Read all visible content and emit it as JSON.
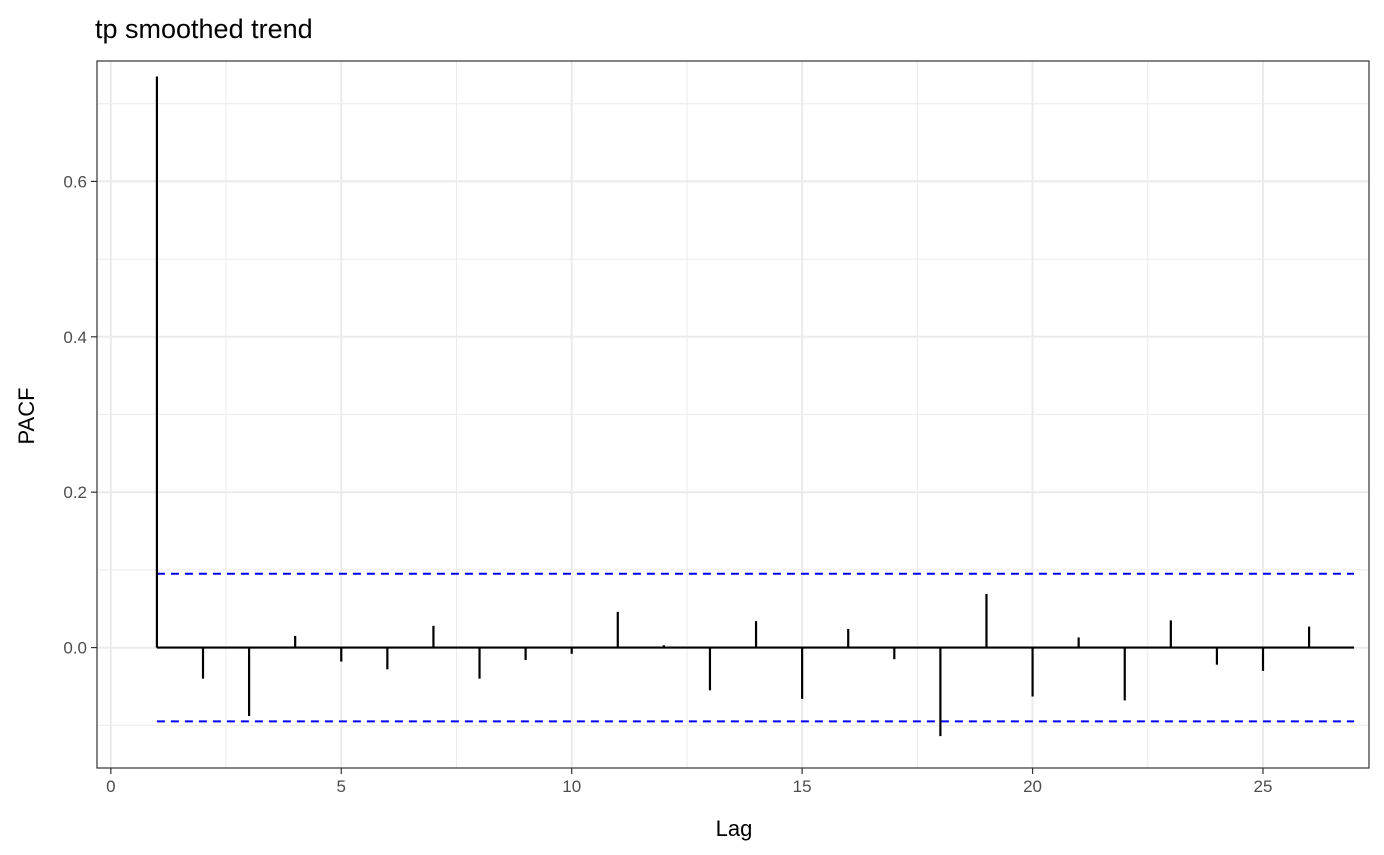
{
  "chart_data": {
    "type": "bar",
    "title": "tp smoothed trend",
    "xlabel": "Lag",
    "ylabel": "PACF",
    "xlim": [
      -0.3,
      27.3
    ],
    "ylim": [
      -0.155,
      0.755
    ],
    "x_ticks": [
      0,
      5,
      10,
      15,
      20,
      25
    ],
    "y_ticks": [
      0.0,
      0.2,
      0.4,
      0.6
    ],
    "y_tick_labels": [
      "0.0",
      "0.2",
      "0.4",
      "0.6"
    ],
    "grid": true,
    "x": [
      1,
      2,
      3,
      4,
      5,
      6,
      7,
      8,
      9,
      10,
      11,
      12,
      13,
      14,
      15,
      16,
      17,
      18,
      19,
      20,
      21,
      22,
      23,
      24,
      25,
      26
    ],
    "values": [
      0.735,
      -0.04,
      -0.088,
      0.015,
      -0.018,
      -0.028,
      0.028,
      -0.04,
      -0.016,
      -0.008,
      0.046,
      0.003,
      -0.055,
      0.034,
      -0.066,
      0.024,
      -0.015,
      -0.114,
      0.069,
      -0.063,
      0.013,
      -0.068,
      0.035,
      -0.022,
      -0.03,
      0.027
    ],
    "confidence_bounds": [
      0.095,
      -0.095
    ],
    "colors": {
      "bars": "#000000",
      "bounds": "#0000ff",
      "grid": "#ebebeb",
      "panel_border": "#333333"
    }
  }
}
